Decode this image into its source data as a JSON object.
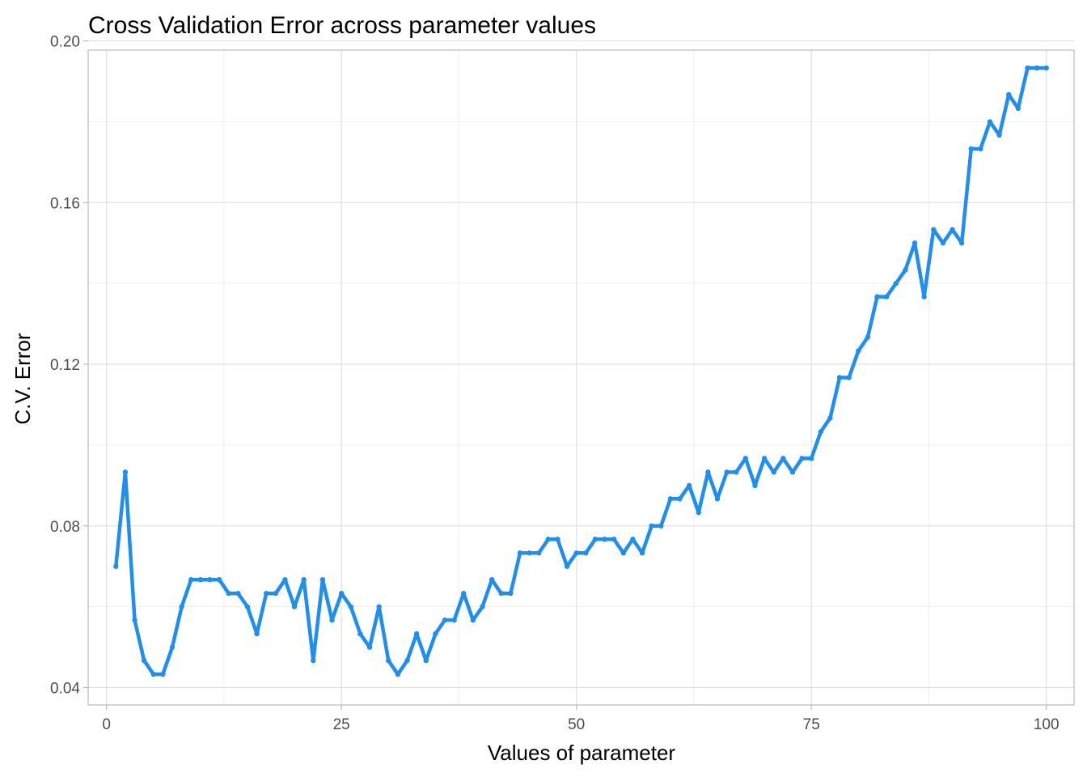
{
  "chart_data": {
    "type": "line",
    "title": "Cross Validation Error across parameter values",
    "xlabel": "Values of parameter",
    "ylabel": "C.V. Error",
    "xlim": [
      -1.95,
      102.95
    ],
    "ylim": [
      0.0357,
      0.1977
    ],
    "xticks": [
      0,
      25,
      50,
      75,
      100
    ],
    "xtick_labels": [
      "0",
      "25",
      "50",
      "75",
      "100"
    ],
    "yticks": [
      0.04,
      0.08,
      0.12,
      0.16,
      0.2
    ],
    "ytick_labels": [
      "0.04",
      "0.08",
      "0.12",
      "0.16",
      "0.20"
    ],
    "grid": true,
    "legend": "none",
    "series": [
      {
        "color": "#1e8ff0",
        "marker": "point",
        "x": [
          1,
          2,
          3,
          4,
          5,
          6,
          7,
          8,
          9,
          10,
          11,
          12,
          13,
          14,
          15,
          16,
          17,
          18,
          19,
          20,
          21,
          22,
          23,
          24,
          25,
          26,
          27,
          28,
          29,
          30,
          31,
          32,
          33,
          34,
          35,
          36,
          37,
          38,
          39,
          40,
          41,
          42,
          43,
          44,
          45,
          46,
          47,
          48,
          49,
          50,
          51,
          52,
          53,
          54,
          55,
          56,
          57,
          58,
          59,
          60,
          61,
          62,
          63,
          64,
          65,
          66,
          67,
          68,
          69,
          70,
          71,
          72,
          73,
          74,
          75,
          76,
          77,
          78,
          79,
          80,
          81,
          82,
          83,
          84,
          85,
          86,
          87,
          88,
          89,
          90,
          91,
          92,
          93,
          94,
          95,
          96,
          97,
          98,
          99,
          100
        ],
        "y": [
          0.07,
          0.0933,
          0.0567,
          0.0467,
          0.0433,
          0.0433,
          0.05,
          0.06,
          0.0667,
          0.0667,
          0.0667,
          0.0667,
          0.0633,
          0.0633,
          0.06,
          0.0533,
          0.0633,
          0.0633,
          0.0667,
          0.06,
          0.0667,
          0.0467,
          0.0667,
          0.0567,
          0.0633,
          0.06,
          0.0533,
          0.05,
          0.06,
          0.0467,
          0.0433,
          0.0467,
          0.0533,
          0.0467,
          0.0533,
          0.0567,
          0.0567,
          0.0633,
          0.0567,
          0.06,
          0.0667,
          0.0633,
          0.0633,
          0.0733,
          0.0733,
          0.0733,
          0.0767,
          0.0767,
          0.07,
          0.0733,
          0.0733,
          0.0767,
          0.0767,
          0.0767,
          0.0733,
          0.0767,
          0.0733,
          0.08,
          0.08,
          0.0867,
          0.0867,
          0.09,
          0.0833,
          0.0933,
          0.0867,
          0.0933,
          0.0933,
          0.0967,
          0.09,
          0.0967,
          0.0933,
          0.0967,
          0.0933,
          0.0967,
          0.0967,
          0.1033,
          0.1067,
          0.1167,
          0.1167,
          0.1233,
          0.1267,
          0.1367,
          0.1367,
          0.14,
          0.1433,
          0.15,
          0.1367,
          0.1533,
          0.15,
          0.1533,
          0.15,
          0.1733,
          0.1733,
          0.18,
          0.1767,
          0.1867,
          0.1833,
          0.1933,
          0.1933,
          0.1933
        ]
      }
    ]
  }
}
